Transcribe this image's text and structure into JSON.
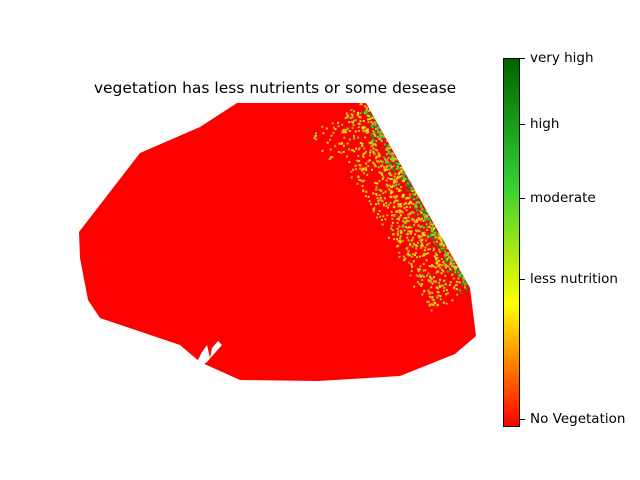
{
  "chart_data": {
    "type": "heatmap",
    "title": "vegetation has less nutrients or some desease",
    "colorbar": {
      "colors": [
        "#ff0000",
        "#ffff00",
        "#32cd32",
        "#006400"
      ],
      "tick_labels": [
        "No Vegetation",
        "less nutrition",
        "moderate",
        "high",
        "very high"
      ],
      "tick_values": [
        0.02,
        0.4,
        0.62,
        0.82,
        1.0
      ]
    },
    "field": {
      "dominant_class": "No Vegetation",
      "dominant_color": "#ff0000",
      "vegetation_region": "top-right edge",
      "vegetation_colors": [
        "#ffd700",
        "#9acd32",
        "#32cd32",
        "#228b22"
      ]
    },
    "xlabel": "",
    "ylabel": "",
    "axes_visible": false,
    "grid": false
  }
}
